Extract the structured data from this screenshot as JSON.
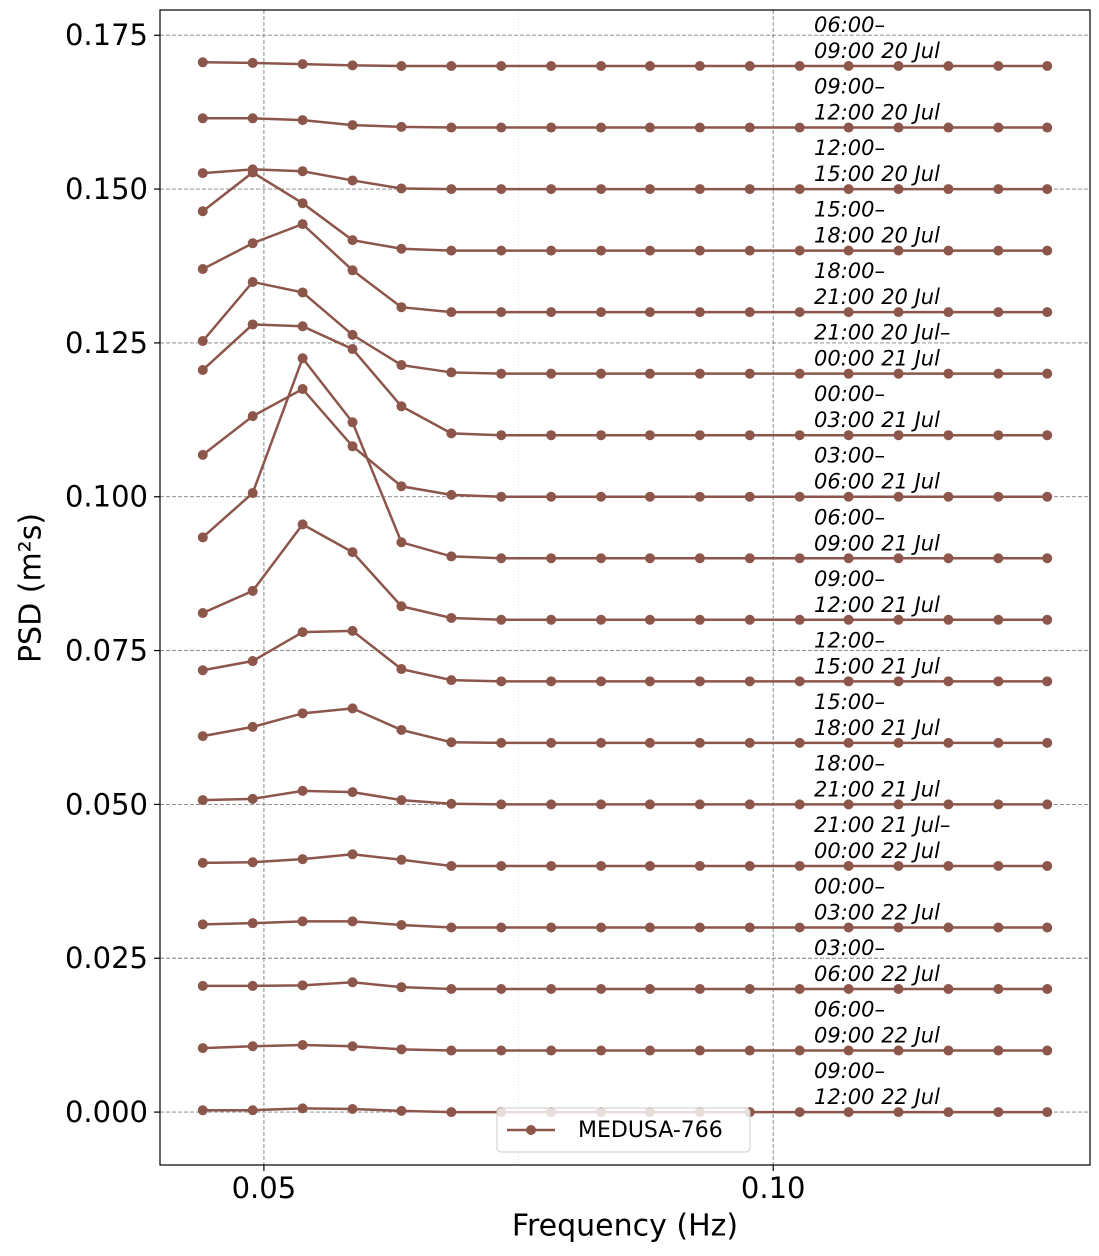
{
  "chart_data": {
    "type": "line",
    "xlabel": "Frequency (Hz)",
    "ylabel": "PSD (m²s)",
    "legend": "MEDUSA-766",
    "legend_loc": "lower center",
    "color": "#8c564b",
    "grid": true,
    "x": [
      0.044,
      0.0489,
      0.0538,
      0.0587,
      0.0635,
      0.0684,
      0.0733,
      0.0782,
      0.0831,
      0.0879,
      0.0928,
      0.0977,
      0.1026,
      0.1074,
      0.1123,
      0.1172,
      0.1221,
      0.1269
    ],
    "xlim": [
      0.0398,
      0.1311
    ],
    "xticks": [
      0.05,
      {
        "value": 0.1,
        "label": "0.10"
      }
    ],
    "xminorticks": [
      0.075
    ],
    "ylim": [
      -0.0086,
      0.1791
    ],
    "yticks": [
      {
        "value": 0,
        "label": "0.000"
      },
      {
        "value": 0.025,
        "label": "0.025"
      },
      {
        "value": 0.05,
        "label": "0.050"
      },
      {
        "value": 0.075,
        "label": "0.075"
      },
      {
        "value": 0.1,
        "label": "0.100"
      },
      {
        "value": 0.125,
        "label": "0.125"
      },
      {
        "value": 0.15,
        "label": "0.150"
      },
      {
        "value": 0.175,
        "label": "0.175"
      }
    ],
    "series": [
      {
        "label": [
          "06:00–",
          "09:00 20 Jul"
        ],
        "values": [
          0.1706,
          0.1705,
          0.1703,
          0.1701,
          0.17,
          0.17,
          0.17,
          0.17,
          0.17,
          0.17,
          0.17,
          0.17,
          0.17,
          0.17,
          0.17,
          0.17,
          0.17,
          0.17
        ]
      },
      {
        "label": [
          "09:00–",
          "12:00 20 Jul"
        ],
        "values": [
          0.1615,
          0.1615,
          0.1612,
          0.1604,
          0.1601,
          0.16,
          0.16,
          0.16,
          0.16,
          0.16,
          0.16,
          0.16,
          0.16,
          0.16,
          0.16,
          0.16,
          0.16,
          0.16
        ]
      },
      {
        "label": [
          "12:00–",
          "15:00 20 Jul"
        ],
        "values": [
          0.1526,
          0.1532,
          0.1529,
          0.1514,
          0.1501,
          0.15,
          0.15,
          0.15,
          0.15,
          0.15,
          0.15,
          0.15,
          0.15,
          0.15,
          0.15,
          0.15,
          0.15,
          0.15
        ]
      },
      {
        "label": [
          "15:00–",
          "18:00 20 Jul"
        ],
        "values": [
          0.1464,
          0.1527,
          0.1477,
          0.1417,
          0.1403,
          0.14,
          0.14,
          0.14,
          0.14,
          0.14,
          0.14,
          0.14,
          0.14,
          0.14,
          0.14,
          0.14,
          0.14,
          0.14
        ]
      },
      {
        "label": [
          "18:00–",
          "21:00 20 Jul"
        ],
        "values": [
          0.137,
          0.1412,
          0.1443,
          0.1368,
          0.1308,
          0.13,
          0.13,
          0.13,
          0.13,
          0.13,
          0.13,
          0.13,
          0.13,
          0.13,
          0.13,
          0.13,
          0.13,
          0.13
        ]
      },
      {
        "label": [
          "21:00 20 Jul–",
          "00:00 21 Jul"
        ],
        "values": [
          0.1253,
          0.1349,
          0.1332,
          0.1263,
          0.1214,
          0.1202,
          0.12,
          0.12,
          0.12,
          0.12,
          0.12,
          0.12,
          0.12,
          0.12,
          0.12,
          0.12,
          0.12,
          0.12
        ]
      },
      {
        "label": [
          "00:00–",
          "03:00 21 Jul"
        ],
        "values": [
          0.1206,
          0.128,
          0.1277,
          0.124,
          0.1147,
          0.1103,
          0.11,
          0.11,
          0.11,
          0.11,
          0.11,
          0.11,
          0.11,
          0.11,
          0.11,
          0.11,
          0.11,
          0.11
        ]
      },
      {
        "label": [
          "03:00–",
          "06:00 21 Jul"
        ],
        "values": [
          0.1068,
          0.1131,
          0.1175,
          0.1082,
          0.1017,
          0.1003,
          0.1,
          0.1,
          0.1,
          0.1,
          0.1,
          0.1,
          0.1,
          0.1,
          0.1,
          0.1,
          0.1,
          0.1
        ]
      },
      {
        "label": [
          "06:00–",
          "09:00 21 Jul"
        ],
        "values": [
          0.0934,
          0.1006,
          0.1225,
          0.1121,
          0.0926,
          0.0903,
          0.09,
          0.09,
          0.09,
          0.09,
          0.09,
          0.09,
          0.09,
          0.09,
          0.09,
          0.09,
          0.09,
          0.09
        ]
      },
      {
        "label": [
          "09:00–",
          "12:00 21 Jul"
        ],
        "values": [
          0.0811,
          0.0847,
          0.0955,
          0.091,
          0.0822,
          0.0803,
          0.08,
          0.08,
          0.08,
          0.08,
          0.08,
          0.08,
          0.08,
          0.08,
          0.08,
          0.08,
          0.08,
          0.08
        ]
      },
      {
        "label": [
          "12:00–",
          "15:00 21 Jul"
        ],
        "values": [
          0.0718,
          0.0733,
          0.078,
          0.0782,
          0.072,
          0.0702,
          0.07,
          0.07,
          0.07,
          0.07,
          0.07,
          0.07,
          0.07,
          0.07,
          0.07,
          0.07,
          0.07,
          0.07
        ]
      },
      {
        "label": [
          "15:00–",
          "18:00 21 Jul"
        ],
        "values": [
          0.0611,
          0.0626,
          0.0648,
          0.0656,
          0.0621,
          0.0601,
          0.06,
          0.06,
          0.06,
          0.06,
          0.06,
          0.06,
          0.06,
          0.06,
          0.06,
          0.06,
          0.06,
          0.06
        ]
      },
      {
        "label": [
          "18:00–",
          "21:00 21 Jul"
        ],
        "values": [
          0.0507,
          0.0509,
          0.0522,
          0.052,
          0.0507,
          0.0501,
          0.05,
          0.05,
          0.05,
          0.05,
          0.05,
          0.05,
          0.05,
          0.05,
          0.05,
          0.05,
          0.05,
          0.05
        ]
      },
      {
        "label": [
          "21:00 21 Jul–",
          "00:00 22 Jul"
        ],
        "values": [
          0.0405,
          0.0406,
          0.0411,
          0.0419,
          0.041,
          0.04,
          0.04,
          0.04,
          0.04,
          0.04,
          0.04,
          0.04,
          0.04,
          0.04,
          0.04,
          0.04,
          0.04,
          0.04
        ]
      },
      {
        "label": [
          "00:00–",
          "03:00 22 Jul"
        ],
        "values": [
          0.0305,
          0.0307,
          0.031,
          0.031,
          0.0304,
          0.03,
          0.03,
          0.03,
          0.03,
          0.03,
          0.03,
          0.03,
          0.03,
          0.03,
          0.03,
          0.03,
          0.03,
          0.03
        ]
      },
      {
        "label": [
          "03:00–",
          "06:00 22 Jul"
        ],
        "values": [
          0.0205,
          0.0205,
          0.0206,
          0.0211,
          0.0203,
          0.02,
          0.02,
          0.02,
          0.02,
          0.02,
          0.02,
          0.02,
          0.02,
          0.02,
          0.02,
          0.02,
          0.02,
          0.02
        ]
      },
      {
        "label": [
          "06:00–",
          "09:00 22 Jul"
        ],
        "values": [
          0.0104,
          0.0107,
          0.0109,
          0.0107,
          0.0102,
          0.01,
          0.01,
          0.01,
          0.01,
          0.01,
          0.01,
          0.01,
          0.01,
          0.01,
          0.01,
          0.01,
          0.01,
          0.01
        ]
      },
      {
        "label": [
          "09:00–",
          "12:00 22 Jul"
        ],
        "values": [
          0.0003,
          0.0003,
          0.0006,
          0.0005,
          0.0002,
          0,
          0,
          0,
          0,
          0,
          0,
          0,
          0,
          0,
          0,
          0,
          0,
          0
        ]
      }
    ]
  }
}
